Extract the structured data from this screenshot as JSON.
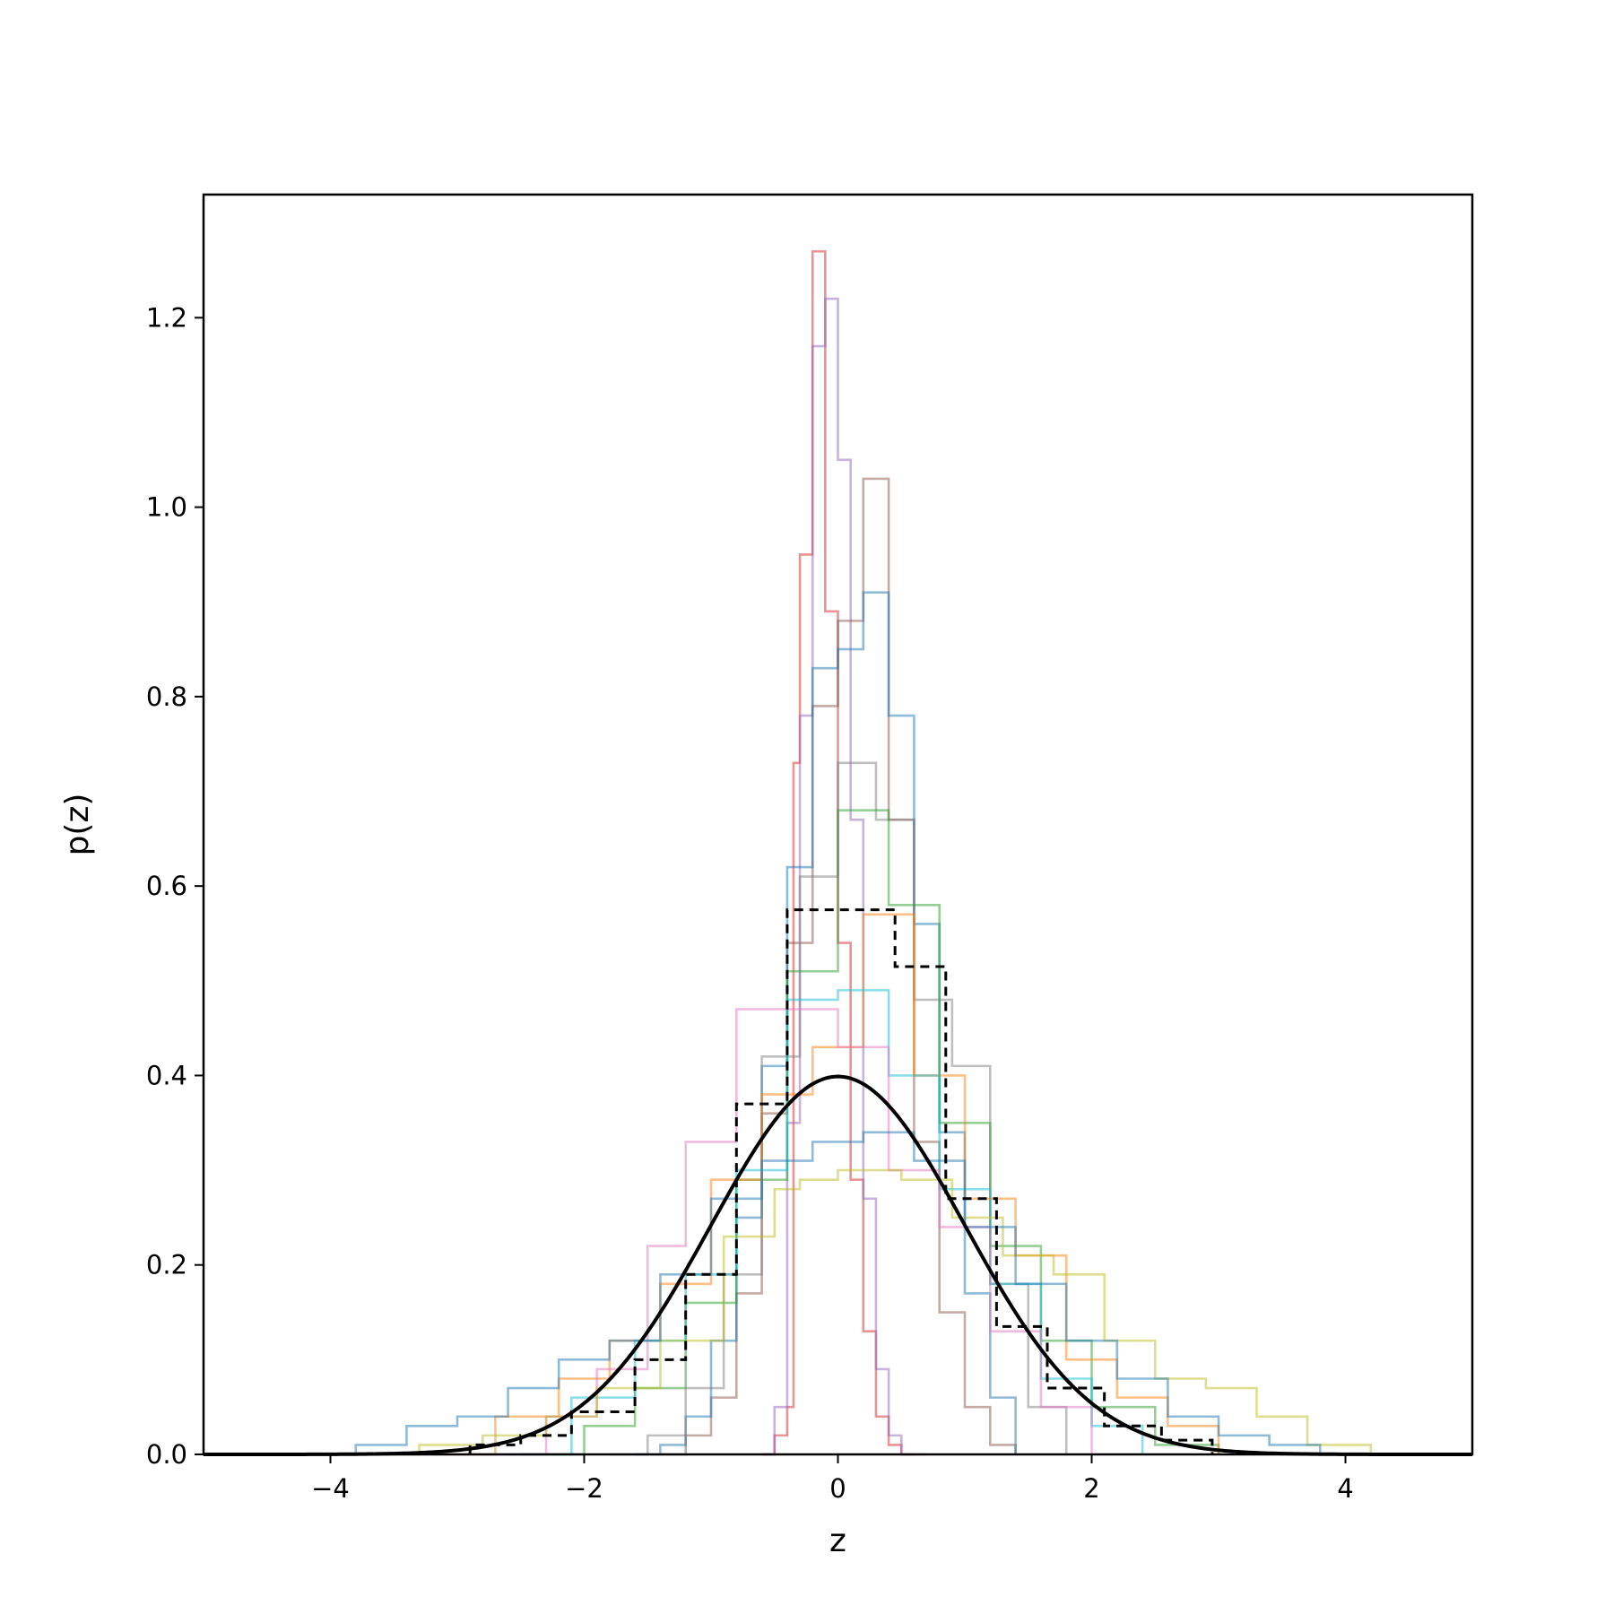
{
  "chart_data": {
    "type": "line",
    "title": "",
    "xlabel": "z",
    "ylabel": "p(z)",
    "xlim": [
      -5,
      5
    ],
    "ylim": [
      0,
      1.33
    ],
    "xticks": [
      -4,
      -2,
      0,
      2,
      4
    ],
    "xtick_labels": [
      "−4",
      "−2",
      "0",
      "2",
      "4"
    ],
    "yticks": [
      0.0,
      0.2,
      0.4,
      0.6,
      0.8,
      1.0,
      1.2
    ],
    "ytick_labels": [
      "0.0",
      "0.2",
      "0.4",
      "0.6",
      "0.8",
      "1.0",
      "1.2"
    ],
    "grid": false,
    "legend": "none",
    "colors": {
      "axes": "#000000",
      "reference_curve": "#000000",
      "series_opacity": 0.5
    },
    "reference_curve": {
      "kind": "standard normal pdf",
      "peak_x": 0,
      "peak_y": 0.4,
      "style": "solid black"
    },
    "series": [
      {
        "color": "#d62728",
        "style": "step",
        "x": [
          -0.6,
          -0.5,
          -0.4,
          -0.35,
          -0.3,
          -0.2,
          -0.1,
          0.0,
          0.1,
          0.2,
          0.3,
          0.4,
          0.5,
          0.6,
          0.7
        ],
        "values": [
          0.0,
          0.02,
          0.05,
          0.73,
          0.95,
          1.27,
          0.89,
          0.54,
          0.29,
          0.13,
          0.04,
          0.01,
          0.0,
          0.0,
          0.0
        ]
      },
      {
        "color": "#9467bd",
        "style": "step",
        "x": [
          -0.6,
          -0.5,
          -0.4,
          -0.3,
          -0.2,
          -0.1,
          0.0,
          0.1,
          0.2,
          0.3,
          0.4,
          0.5,
          0.6
        ],
        "values": [
          0.0,
          0.05,
          0.35,
          0.78,
          1.17,
          1.22,
          1.05,
          0.67,
          0.27,
          0.09,
          0.02,
          0.0,
          0.0
        ]
      },
      {
        "color": "#8c564b",
        "style": "step",
        "x": [
          -1.4,
          -1.2,
          -1.0,
          -0.8,
          -0.6,
          -0.4,
          -0.2,
          0.0,
          0.2,
          0.4,
          0.6,
          0.8,
          1.0,
          1.2,
          1.4
        ],
        "values": [
          0.0,
          0.02,
          0.06,
          0.17,
          0.36,
          0.54,
          0.79,
          0.88,
          1.03,
          0.67,
          0.33,
          0.15,
          0.05,
          0.01,
          0.0
        ]
      },
      {
        "color": "#1f77b4",
        "style": "step",
        "x": [
          -1.6,
          -1.4,
          -1.2,
          -1.0,
          -0.8,
          -0.6,
          -0.4,
          -0.2,
          0.0,
          0.2,
          0.4,
          0.6,
          0.8,
          1.0,
          1.2,
          1.4
        ],
        "values": [
          0.0,
          0.01,
          0.04,
          0.12,
          0.25,
          0.41,
          0.62,
          0.83,
          0.85,
          0.91,
          0.78,
          0.56,
          0.34,
          0.17,
          0.06,
          0.02
        ]
      },
      {
        "color": "#7f7f7f",
        "style": "step",
        "x": [
          -1.8,
          -1.5,
          -1.2,
          -0.9,
          -0.6,
          -0.3,
          0.0,
          0.3,
          0.6,
          0.9,
          1.2,
          1.5,
          1.8
        ],
        "values": [
          0.0,
          0.02,
          0.07,
          0.19,
          0.42,
          0.61,
          0.73,
          0.67,
          0.48,
          0.41,
          0.18,
          0.05,
          0.01
        ]
      },
      {
        "color": "#2ca02c",
        "style": "step",
        "x": [
          -2.5,
          -2.0,
          -1.6,
          -1.2,
          -0.8,
          -0.4,
          0.0,
          0.4,
          0.8,
          1.2,
          1.6,
          2.0,
          2.5,
          3.0
        ],
        "values": [
          0.0,
          0.03,
          0.07,
          0.16,
          0.29,
          0.51,
          0.68,
          0.58,
          0.35,
          0.22,
          0.12,
          0.05,
          0.01,
          0.0
        ]
      },
      {
        "color": "#ff7f0e",
        "style": "step",
        "x": [
          -3.2,
          -2.7,
          -2.2,
          -1.8,
          -1.4,
          -1.0,
          -0.6,
          -0.2,
          0.2,
          0.6,
          1.0,
          1.4,
          1.8,
          2.2,
          2.6,
          3.0
        ],
        "values": [
          0.0,
          0.04,
          0.08,
          0.12,
          0.18,
          0.29,
          0.38,
          0.43,
          0.57,
          0.4,
          0.27,
          0.21,
          0.1,
          0.06,
          0.03,
          0.01
        ]
      },
      {
        "color": "#17becf",
        "style": "step",
        "x": [
          -2.6,
          -2.1,
          -1.6,
          -1.2,
          -0.8,
          -0.4,
          0.0,
          0.4,
          0.8,
          1.2,
          1.6,
          2.0,
          2.4
        ],
        "values": [
          0.0,
          0.06,
          0.12,
          0.19,
          0.3,
          0.48,
          0.49,
          0.4,
          0.28,
          0.18,
          0.08,
          0.03,
          0.0
        ]
      },
      {
        "color": "#e377c2",
        "style": "step",
        "x": [
          -2.8,
          -2.3,
          -1.9,
          -1.5,
          -1.2,
          -0.8,
          -0.4,
          0.0,
          0.4,
          0.8,
          1.2,
          1.6,
          2.0
        ],
        "values": [
          0.0,
          0.04,
          0.09,
          0.22,
          0.33,
          0.47,
          0.47,
          0.43,
          0.3,
          0.24,
          0.13,
          0.05,
          0.01
        ]
      },
      {
        "color": "#bcbd22",
        "style": "step",
        "x": [
          -3.7,
          -3.3,
          -2.8,
          -2.3,
          -1.9,
          -1.4,
          -0.9,
          -0.5,
          -0.3,
          0.0,
          0.5,
          0.9,
          1.3,
          1.7,
          2.1,
          2.5,
          2.9,
          3.3,
          3.7,
          4.2
        ],
        "values": [
          0.0,
          0.01,
          0.02,
          0.04,
          0.07,
          0.12,
          0.23,
          0.28,
          0.29,
          0.3,
          0.29,
          0.25,
          0.21,
          0.19,
          0.12,
          0.08,
          0.07,
          0.04,
          0.01,
          0.0
        ]
      },
      {
        "color": "#1f77b4",
        "style": "step",
        "x": [
          -4.2,
          -3.8,
          -3.4,
          -3.0,
          -2.6,
          -2.2,
          -1.8,
          -1.4,
          -1.0,
          -0.6,
          -0.2,
          0.2,
          0.6,
          1.0,
          1.4,
          1.8,
          2.2,
          2.6,
          3.0,
          3.4,
          3.8
        ],
        "values": [
          0.0,
          0.01,
          0.03,
          0.04,
          0.07,
          0.1,
          0.12,
          0.19,
          0.27,
          0.31,
          0.33,
          0.34,
          0.31,
          0.24,
          0.18,
          0.12,
          0.08,
          0.04,
          0.02,
          0.01,
          0.0
        ]
      },
      {
        "color": "#000000",
        "style": "dashed-step",
        "x": [
          -2.9,
          -2.5,
          -2.1,
          -1.6,
          -1.2,
          -0.8,
          -0.4,
          0.0,
          0.45,
          0.85,
          1.25,
          1.65,
          2.1,
          2.55,
          2.95
        ],
        "values": [
          0.01,
          0.02,
          0.045,
          0.1,
          0.19,
          0.37,
          0.575,
          0.575,
          0.515,
          0.27,
          0.135,
          0.07,
          0.03,
          0.015,
          0.005
        ]
      }
    ]
  }
}
